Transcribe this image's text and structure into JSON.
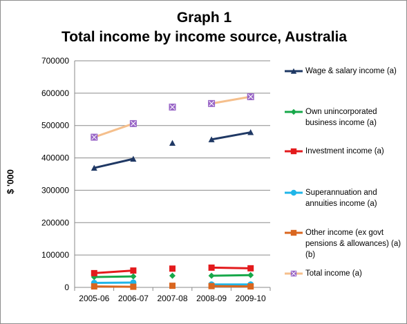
{
  "chart_data": {
    "type": "line",
    "title": "Graph 1",
    "subtitle": "Total income by income source, Australia",
    "ylabel": "$ '000",
    "xlabel": "",
    "categories": [
      "2005-06",
      "2006-07",
      "2007-08",
      "2008-09",
      "2009-10"
    ],
    "ylim": [
      0,
      700000
    ],
    "yticks": [
      "0",
      "100000",
      "200000",
      "300000",
      "400000",
      "500000",
      "600000",
      "700000"
    ],
    "grid": true,
    "legend_position": "right",
    "series": [
      {
        "name": "Wage & salary income (a)",
        "color": "#1f3864",
        "marker": "triangle",
        "values": [
          369000,
          397000,
          446000,
          457000,
          479000
        ]
      },
      {
        "name": "Own unincorporated business income (a)",
        "color": "#17a84a",
        "marker": "diamond",
        "values": [
          32000,
          34000,
          36000,
          36000,
          38000
        ]
      },
      {
        "name": "Investment income (a)",
        "color": "#e31a1c",
        "marker": "square",
        "values": [
          44000,
          52000,
          58000,
          61000,
          59000
        ]
      },
      {
        "name": "Superannuation and annuities income (a)",
        "color": "#1fb5e8",
        "marker": "circle",
        "values": [
          14000,
          15000,
          null,
          9000,
          9000
        ]
      },
      {
        "name": "Other income (ex govt pensions & allowances) (a) (b)",
        "color": "#d9661f",
        "marker": "square",
        "values": [
          3000,
          2000,
          5000,
          4000,
          3000
        ]
      },
      {
        "name": "Total income (a)",
        "color": "#f5bf8c",
        "marker": "xsquare",
        "markerColor": "#9966c7",
        "values": [
          464000,
          506000,
          557000,
          568000,
          589000
        ]
      }
    ],
    "segments_drawn": [
      [
        0,
        1
      ],
      [
        3,
        4
      ]
    ]
  }
}
